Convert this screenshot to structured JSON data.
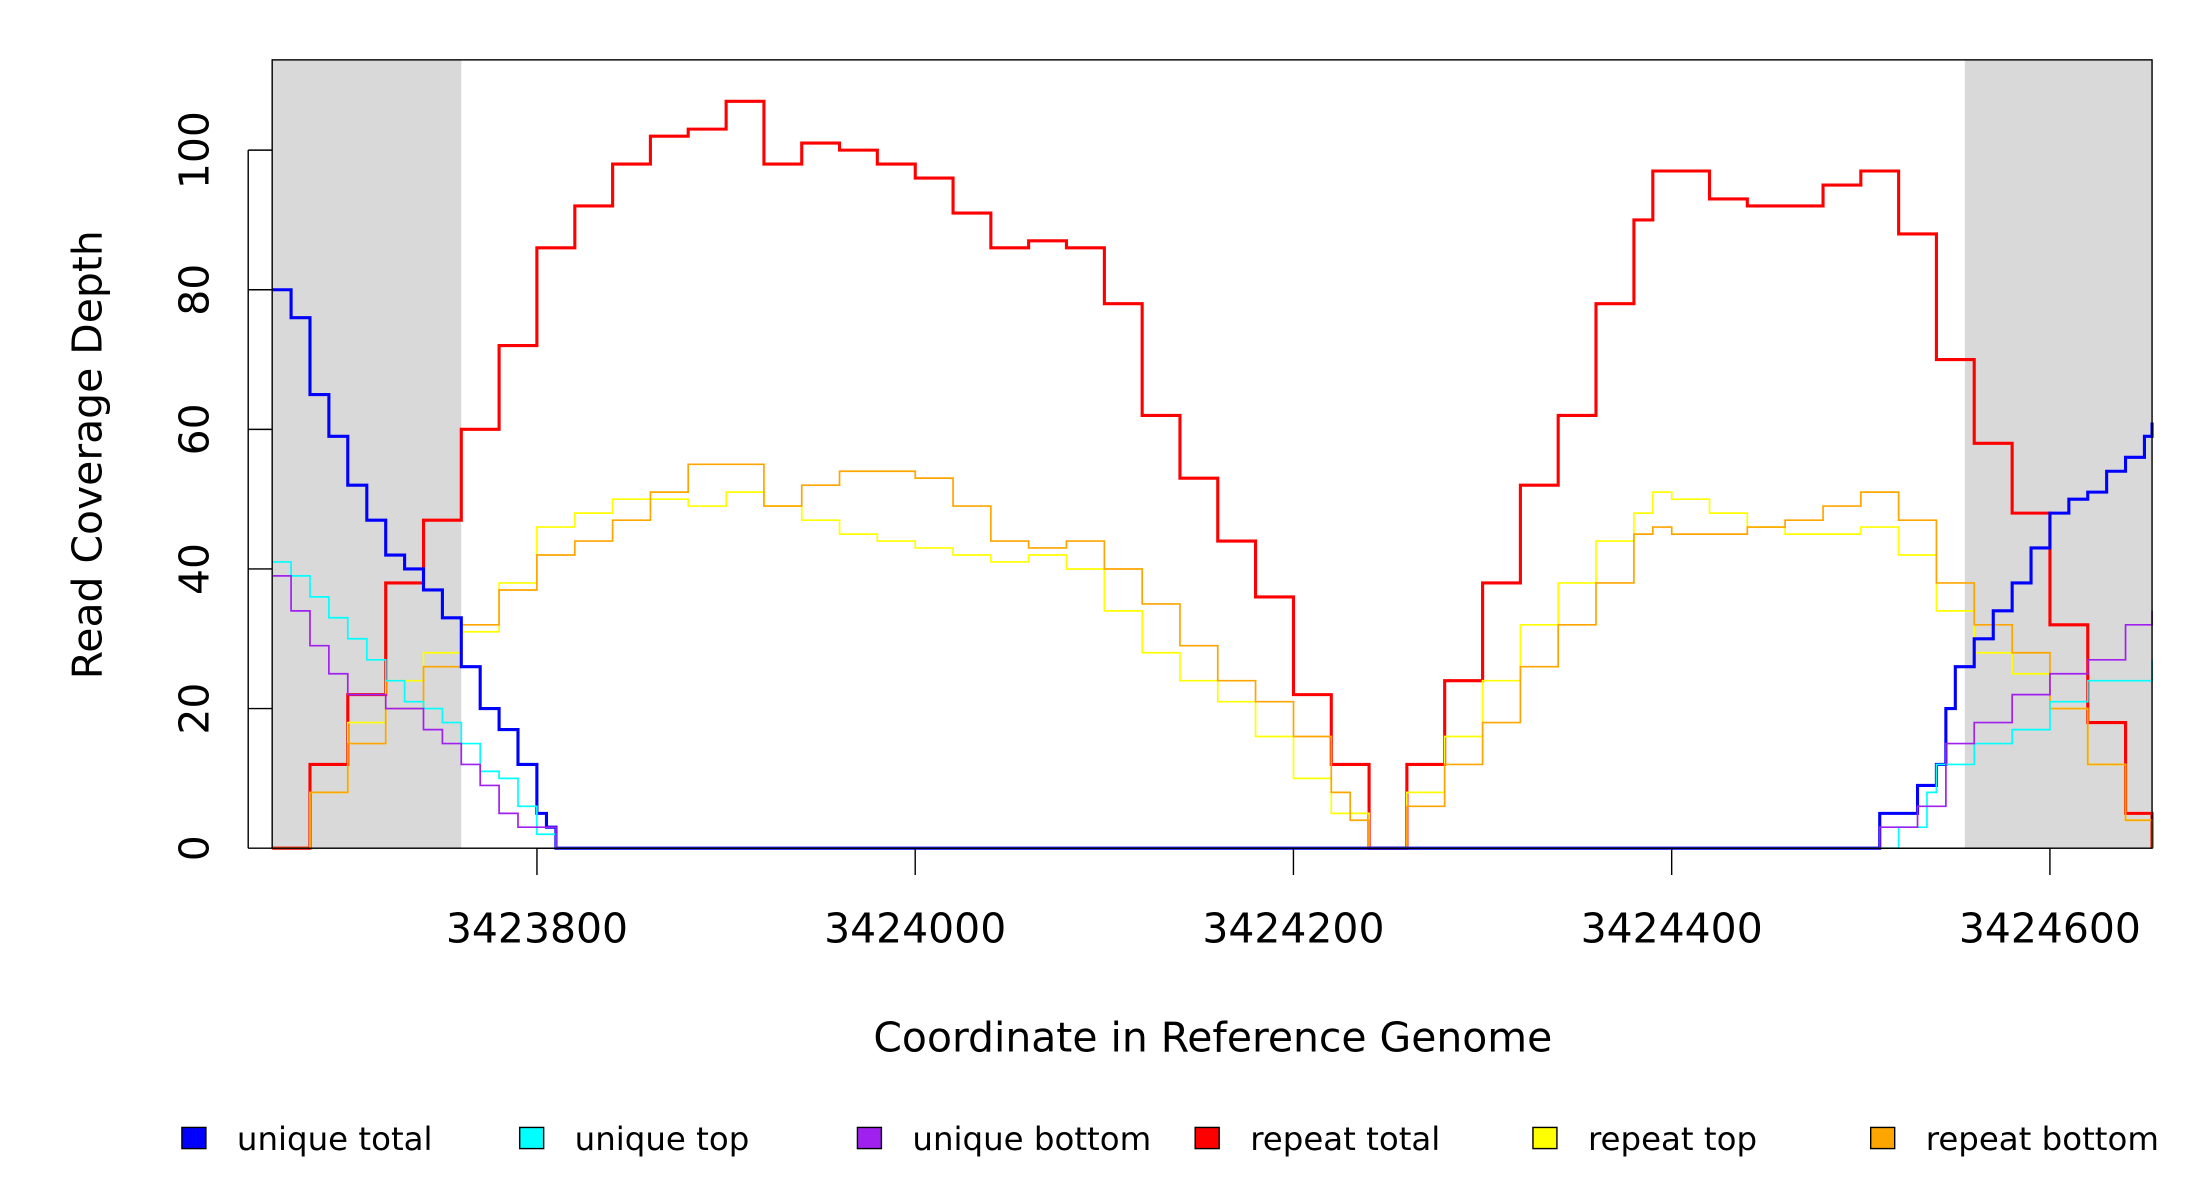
{
  "chart_data": {
    "type": "line",
    "title": "",
    "xlabel": "Coordinate in Reference Genome",
    "ylabel": "Read Coverage Depth",
    "xlim": [
      3423660,
      3424654
    ],
    "ylim": [
      0,
      112
    ],
    "x_ticks": [
      3423800,
      3424000,
      3424200,
      3424400,
      3424600
    ],
    "x_tick_labels": [
      "3423800",
      "3424000",
      "3424200",
      "3424400",
      "3424600"
    ],
    "y_ticks": [
      0,
      20,
      40,
      60,
      80,
      100
    ],
    "y_tick_labels": [
      "0",
      "20",
      "40",
      "60",
      "80",
      "100"
    ],
    "grid": false,
    "legend_position": "bottom",
    "shaded_regions": [
      [
        3423660,
        3423760
      ],
      [
        3424555,
        3424654
      ]
    ],
    "shade_color": "#d9d9d9",
    "series": [
      {
        "name": "repeat total",
        "color": "#ff0000",
        "width": 2.2,
        "points": [
          [
            3423660,
            0
          ],
          [
            3423680,
            12
          ],
          [
            3423700,
            22
          ],
          [
            3423720,
            38
          ],
          [
            3423740,
            47
          ],
          [
            3423760,
            60
          ],
          [
            3423780,
            72
          ],
          [
            3423800,
            86
          ],
          [
            3423820,
            92
          ],
          [
            3423840,
            98
          ],
          [
            3423860,
            102
          ],
          [
            3423880,
            103
          ],
          [
            3423900,
            107
          ],
          [
            3423920,
            98
          ],
          [
            3423940,
            101
          ],
          [
            3423960,
            100
          ],
          [
            3423980,
            98
          ],
          [
            3424000,
            96
          ],
          [
            3424020,
            91
          ],
          [
            3424040,
            86
          ],
          [
            3424060,
            87
          ],
          [
            3424080,
            86
          ],
          [
            3424100,
            78
          ],
          [
            3424120,
            62
          ],
          [
            3424140,
            53
          ],
          [
            3424160,
            44
          ],
          [
            3424180,
            36
          ],
          [
            3424200,
            22
          ],
          [
            3424220,
            12
          ],
          [
            3424240,
            0
          ],
          [
            3424260,
            12
          ],
          [
            3424280,
            24
          ],
          [
            3424300,
            38
          ],
          [
            3424320,
            52
          ],
          [
            3424340,
            62
          ],
          [
            3424360,
            78
          ],
          [
            3424380,
            90
          ],
          [
            3424390,
            97
          ],
          [
            3424400,
            97
          ],
          [
            3424420,
            93
          ],
          [
            3424440,
            92
          ],
          [
            3424460,
            92
          ],
          [
            3424480,
            95
          ],
          [
            3424500,
            97
          ],
          [
            3424520,
            88
          ],
          [
            3424540,
            70
          ],
          [
            3424560,
            58
          ],
          [
            3424580,
            48
          ],
          [
            3424600,
            32
          ],
          [
            3424620,
            18
          ],
          [
            3424640,
            5
          ],
          [
            3424654,
            0
          ]
        ]
      },
      {
        "name": "repeat top",
        "color": "#ffff00",
        "width": 1.2,
        "points": [
          [
            3423660,
            0
          ],
          [
            3423680,
            8
          ],
          [
            3423700,
            18
          ],
          [
            3423720,
            24
          ],
          [
            3423740,
            28
          ],
          [
            3423760,
            31
          ],
          [
            3423780,
            38
          ],
          [
            3423800,
            46
          ],
          [
            3423820,
            48
          ],
          [
            3423840,
            50
          ],
          [
            3423860,
            50
          ],
          [
            3423880,
            49
          ],
          [
            3423900,
            51
          ],
          [
            3423920,
            49
          ],
          [
            3423940,
            47
          ],
          [
            3423960,
            45
          ],
          [
            3423980,
            44
          ],
          [
            3424000,
            43
          ],
          [
            3424020,
            42
          ],
          [
            3424040,
            41
          ],
          [
            3424060,
            42
          ],
          [
            3424080,
            40
          ],
          [
            3424100,
            34
          ],
          [
            3424120,
            28
          ],
          [
            3424140,
            24
          ],
          [
            3424160,
            21
          ],
          [
            3424180,
            16
          ],
          [
            3424200,
            10
          ],
          [
            3424220,
            5
          ],
          [
            3424240,
            0
          ],
          [
            3424260,
            8
          ],
          [
            3424280,
            16
          ],
          [
            3424300,
            24
          ],
          [
            3424320,
            32
          ],
          [
            3424340,
            38
          ],
          [
            3424360,
            44
          ],
          [
            3424380,
            48
          ],
          [
            3424390,
            51
          ],
          [
            3424400,
            50
          ],
          [
            3424420,
            48
          ],
          [
            3424440,
            46
          ],
          [
            3424460,
            45
          ],
          [
            3424480,
            45
          ],
          [
            3424500,
            46
          ],
          [
            3424520,
            42
          ],
          [
            3424540,
            34
          ],
          [
            3424560,
            28
          ],
          [
            3424580,
            25
          ],
          [
            3424600,
            20
          ],
          [
            3424620,
            12
          ],
          [
            3424640,
            4
          ],
          [
            3424654,
            0
          ]
        ]
      },
      {
        "name": "repeat bottom",
        "color": "#ffa500",
        "width": 1.2,
        "points": [
          [
            3423660,
            0
          ],
          [
            3423680,
            8
          ],
          [
            3423700,
            15
          ],
          [
            3423720,
            20
          ],
          [
            3423740,
            26
          ],
          [
            3423760,
            32
          ],
          [
            3423780,
            37
          ],
          [
            3423800,
            42
          ],
          [
            3423820,
            44
          ],
          [
            3423840,
            47
          ],
          [
            3423860,
            51
          ],
          [
            3423880,
            55
          ],
          [
            3423900,
            55
          ],
          [
            3423920,
            49
          ],
          [
            3423940,
            52
          ],
          [
            3423960,
            54
          ],
          [
            3423980,
            54
          ],
          [
            3424000,
            53
          ],
          [
            3424020,
            49
          ],
          [
            3424040,
            44
          ],
          [
            3424060,
            43
          ],
          [
            3424080,
            44
          ],
          [
            3424100,
            40
          ],
          [
            3424120,
            35
          ],
          [
            3424140,
            29
          ],
          [
            3424160,
            24
          ],
          [
            3424180,
            21
          ],
          [
            3424200,
            16
          ],
          [
            3424220,
            8
          ],
          [
            3424230,
            4
          ],
          [
            3424240,
            0
          ],
          [
            3424260,
            6
          ],
          [
            3424280,
            12
          ],
          [
            3424300,
            18
          ],
          [
            3424320,
            26
          ],
          [
            3424340,
            32
          ],
          [
            3424360,
            38
          ],
          [
            3424380,
            45
          ],
          [
            3424390,
            46
          ],
          [
            3424400,
            45
          ],
          [
            3424420,
            45
          ],
          [
            3424440,
            46
          ],
          [
            3424460,
            47
          ],
          [
            3424480,
            49
          ],
          [
            3424500,
            51
          ],
          [
            3424520,
            47
          ],
          [
            3424540,
            38
          ],
          [
            3424560,
            32
          ],
          [
            3424580,
            28
          ],
          [
            3424600,
            20
          ],
          [
            3424620,
            12
          ],
          [
            3424640,
            4
          ],
          [
            3424654,
            0
          ]
        ]
      },
      {
        "name": "unique total",
        "color": "#0000ff",
        "width": 2.2,
        "points": [
          [
            3423660,
            80
          ],
          [
            3423670,
            76
          ],
          [
            3423680,
            65
          ],
          [
            3423690,
            59
          ],
          [
            3423700,
            52
          ],
          [
            3423710,
            47
          ],
          [
            3423720,
            42
          ],
          [
            3423730,
            40
          ],
          [
            3423740,
            37
          ],
          [
            3423750,
            33
          ],
          [
            3423760,
            26
          ],
          [
            3423770,
            20
          ],
          [
            3423780,
            17
          ],
          [
            3423790,
            12
          ],
          [
            3423800,
            5
          ],
          [
            3423805,
            3
          ],
          [
            3423810,
            0
          ],
          [
            3424505,
            0
          ],
          [
            3424510,
            5
          ],
          [
            3424530,
            9
          ],
          [
            3424540,
            12
          ],
          [
            3424545,
            20
          ],
          [
            3424550,
            26
          ],
          [
            3424560,
            30
          ],
          [
            3424570,
            34
          ],
          [
            3424580,
            38
          ],
          [
            3424590,
            43
          ],
          [
            3424600,
            48
          ],
          [
            3424610,
            50
          ],
          [
            3424620,
            51
          ],
          [
            3424630,
            54
          ],
          [
            3424640,
            56
          ],
          [
            3424650,
            59
          ],
          [
            3424654,
            61
          ]
        ]
      },
      {
        "name": "unique top",
        "color": "#00ffff",
        "width": 1.2,
        "points": [
          [
            3423660,
            41
          ],
          [
            3423670,
            39
          ],
          [
            3423680,
            36
          ],
          [
            3423690,
            33
          ],
          [
            3423700,
            30
          ],
          [
            3423710,
            27
          ],
          [
            3423720,
            24
          ],
          [
            3423730,
            21
          ],
          [
            3423740,
            20
          ],
          [
            3423750,
            18
          ],
          [
            3423760,
            15
          ],
          [
            3423770,
            11
          ],
          [
            3423780,
            10
          ],
          [
            3423790,
            6
          ],
          [
            3423800,
            2
          ],
          [
            3423810,
            0
          ],
          [
            3424505,
            0
          ],
          [
            3424520,
            3
          ],
          [
            3424535,
            8
          ],
          [
            3424540,
            12
          ],
          [
            3424560,
            15
          ],
          [
            3424580,
            17
          ],
          [
            3424600,
            21
          ],
          [
            3424620,
            24
          ],
          [
            3424640,
            24
          ],
          [
            3424654,
            27
          ]
        ]
      },
      {
        "name": "unique bottom",
        "color": "#a020f0",
        "width": 1.2,
        "points": [
          [
            3423660,
            39
          ],
          [
            3423670,
            34
          ],
          [
            3423680,
            29
          ],
          [
            3423690,
            25
          ],
          [
            3423700,
            22
          ],
          [
            3423720,
            20
          ],
          [
            3423740,
            17
          ],
          [
            3423750,
            15
          ],
          [
            3423760,
            12
          ],
          [
            3423770,
            9
          ],
          [
            3423780,
            5
          ],
          [
            3423790,
            3
          ],
          [
            3423800,
            3
          ],
          [
            3423810,
            0
          ],
          [
            3424505,
            0
          ],
          [
            3424510,
            3
          ],
          [
            3424530,
            6
          ],
          [
            3424545,
            15
          ],
          [
            3424560,
            18
          ],
          [
            3424580,
            22
          ],
          [
            3424600,
            25
          ],
          [
            3424620,
            27
          ],
          [
            3424640,
            32
          ],
          [
            3424654,
            34
          ]
        ]
      }
    ],
    "legend": [
      {
        "label": "unique total",
        "color": "#0000ff"
      },
      {
        "label": "unique top",
        "color": "#00ffff"
      },
      {
        "label": "unique bottom",
        "color": "#a020f0"
      },
      {
        "label": "repeat total",
        "color": "#ff0000"
      },
      {
        "label": "repeat top",
        "color": "#ffff00"
      },
      {
        "label": "repeat bottom",
        "color": "#ffa500"
      }
    ]
  }
}
